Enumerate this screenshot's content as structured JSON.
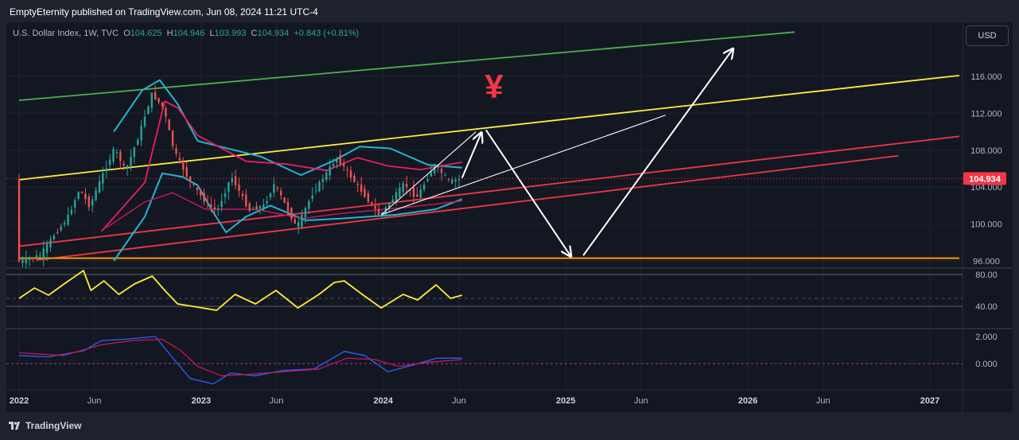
{
  "header": {
    "publisher_line": "EmptyEternity published on TradingView.com, Jun 08, 2024 11:21 UTC-4"
  },
  "legend": {
    "symbol": "U.S. Dollar Index, 1W, TVC",
    "o_label": "O",
    "o_value": "104.625",
    "h_label": "H",
    "h_value": "104.946",
    "l_label": "L",
    "l_value": "103.993",
    "c_label": "C",
    "c_value": "104.934",
    "change": "+0.843 (+0.81%)"
  },
  "currency_button": "USD",
  "annotation_symbol": "¥",
  "footer": {
    "brand": "TradingView"
  },
  "colors": {
    "background": "#131722",
    "up_candle": "#26a69a",
    "down_candle": "#ef5350",
    "yellow_line": "#ffeb3b",
    "red_line": "#f23645",
    "green_line": "#4caf50",
    "orange_line": "#ff9800",
    "bb_cyan": "#22b5d1",
    "bb_pink": "#e91e63",
    "macd_blue": "#2962ff",
    "macd_red": "#c2185b",
    "price_tag": "#f23645"
  },
  "chart_data": [
    {
      "type": "candlestick",
      "title": "U.S. Dollar Index, 1W, TVC",
      "x_tick_labels": [
        "2022",
        "Jun",
        "2023",
        "Jun",
        "2024",
        "Jun",
        "2025",
        "Jun",
        "2026",
        "Jun",
        "2027"
      ],
      "x_tick_dates": [
        "2022-01-01",
        "2022-06-01",
        "2023-01-01",
        "2023-06-01",
        "2024-01-01",
        "2024-06-01",
        "2025-01-01",
        "2025-06-01",
        "2026-01-01",
        "2026-06-01",
        "2027-01-01"
      ],
      "y_tick_labels": [
        "96.000",
        "100.000",
        "104.000",
        "108.000",
        "112.000",
        "116.000"
      ],
      "y_ticks": [
        96,
        100,
        104,
        108,
        112,
        116
      ],
      "ylim": [
        95.8,
        120.8
      ],
      "last_price": 104.934,
      "last_price_label": "104.934",
      "price_path": [
        [
          "2022-01-01",
          95.9
        ],
        [
          "2022-02-15",
          96.6
        ],
        [
          "2022-03-15",
          98.8
        ],
        [
          "2022-04-10",
          100.6
        ],
        [
          "2022-05-05",
          103.8
        ],
        [
          "2022-05-25",
          101.9
        ],
        [
          "2022-06-15",
          104.7
        ],
        [
          "2022-07-14",
          108.2
        ],
        [
          "2022-08-05",
          105.8
        ],
        [
          "2022-08-28",
          109.0
        ],
        [
          "2022-09-27",
          114.1
        ],
        [
          "2022-10-20",
          112.6
        ],
        [
          "2022-11-10",
          108.0
        ],
        [
          "2022-12-10",
          104.8
        ],
        [
          "2023-01-15",
          102.2
        ],
        [
          "2023-02-05",
          101.4
        ],
        [
          "2023-03-05",
          105.2
        ],
        [
          "2023-04-10",
          101.5
        ],
        [
          "2023-05-10",
          102.0
        ],
        [
          "2023-05-31",
          104.4
        ],
        [
          "2023-07-14",
          99.6
        ],
        [
          "2023-08-15",
          103.3
        ],
        [
          "2023-10-03",
          107.2
        ],
        [
          "2023-11-15",
          104.0
        ],
        [
          "2023-12-28",
          100.9
        ],
        [
          "2024-02-15",
          104.4
        ],
        [
          "2024-03-10",
          102.8
        ],
        [
          "2024-04-16",
          106.4
        ],
        [
          "2024-05-15",
          104.6
        ],
        [
          "2024-06-07",
          104.93
        ]
      ],
      "bb_upper": [
        [
          "2022-07-10",
          110.0
        ],
        [
          "2022-09-05",
          114.5
        ],
        [
          "2022-10-10",
          115.6
        ],
        [
          "2022-11-15",
          113.0
        ],
        [
          "2022-12-25",
          109.0
        ],
        [
          "2023-02-15",
          108.3
        ],
        [
          "2023-05-01",
          107.3
        ],
        [
          "2023-07-20",
          105.3
        ],
        [
          "2023-09-25",
          106.9
        ],
        [
          "2023-11-15",
          108.4
        ],
        [
          "2024-01-15",
          108.2
        ],
        [
          "2024-04-01",
          106.4
        ],
        [
          "2024-06-07",
          106.1
        ]
      ],
      "bb_lower": [
        [
          "2022-07-10",
          96.0
        ],
        [
          "2022-09-10",
          100.8
        ],
        [
          "2022-10-15",
          105.5
        ],
        [
          "2022-11-25",
          105.1
        ],
        [
          "2022-12-25",
          104.2
        ],
        [
          "2023-01-25",
          101.3
        ],
        [
          "2023-02-20",
          99.1
        ],
        [
          "2023-04-01",
          100.8
        ],
        [
          "2023-05-20",
          102.0
        ],
        [
          "2023-07-30",
          100.4
        ],
        [
          "2023-10-10",
          100.6
        ],
        [
          "2024-01-25",
          101.0
        ],
        [
          "2024-04-15",
          101.6
        ],
        [
          "2024-06-07",
          102.7
        ]
      ],
      "ma_pink": [
        [
          "2022-06-15",
          99.2
        ],
        [
          "2022-09-10",
          104.5
        ],
        [
          "2022-10-20",
          113.3
        ],
        [
          "2022-11-15",
          112.6
        ],
        [
          "2022-12-25",
          109.6
        ],
        [
          "2023-04-01",
          106.8
        ],
        [
          "2023-06-20",
          106.5
        ],
        [
          "2023-09-10",
          105.8
        ],
        [
          "2023-11-10",
          107.2
        ],
        [
          "2024-01-10",
          106.3
        ],
        [
          "2024-03-15",
          105.9
        ],
        [
          "2024-06-07",
          106.7
        ]
      ],
      "ma_red": [
        [
          "2022-06-25",
          99.6
        ],
        [
          "2022-09-10",
          102.4
        ],
        [
          "2022-11-05",
          103.4
        ],
        [
          "2023-01-10",
          101.6
        ],
        [
          "2023-04-20",
          101.6
        ],
        [
          "2023-07-25",
          100.6
        ],
        [
          "2023-10-01",
          101.1
        ],
        [
          "2023-12-15",
          101.5
        ],
        [
          "2024-03-01",
          101.9
        ],
        [
          "2024-06-07",
          102.5
        ]
      ],
      "trendlines": [
        {
          "id": "green-channel-top",
          "from": [
            "2022-01-01",
            113.4
          ],
          "to": [
            "2026-04-05",
            120.8
          ],
          "color": "green_line"
        },
        {
          "id": "yellow-resistance",
          "from": [
            "2022-01-01",
            104.8
          ],
          "to": [
            "2027-03-01",
            116.1
          ],
          "color": "yellow_line"
        },
        {
          "id": "red-upper",
          "from": [
            "2022-01-01",
            97.6
          ],
          "to": [
            "2027-03-01",
            109.5
          ],
          "color": "red_line"
        },
        {
          "id": "red-lower",
          "from": [
            "2022-02-05",
            96.1
          ],
          "to": [
            "2026-10-30",
            107.4
          ],
          "color": "red_line"
        },
        {
          "id": "orange-support",
          "from": [
            "2022-01-01",
            96.3
          ],
          "to": [
            "2027-03-01",
            96.3
          ],
          "color": "orange_line"
        }
      ],
      "projection_arrows": [
        {
          "from": [
            "2024-06-07",
            105.0
          ],
          "to": [
            "2024-07-15",
            109.8
          ]
        },
        {
          "from": [
            "2024-07-25",
            110.2
          ],
          "to": [
            "2025-01-10",
            96.6
          ]
        },
        {
          "from": [
            "2025-02-05",
            96.6
          ],
          "to": [
            "2025-12-01",
            118.9
          ]
        }
      ],
      "projection_lines": [
        {
          "from": [
            "2023-12-28",
            101.0
          ],
          "to": [
            "2024-07-05",
            110.0
          ]
        },
        {
          "from": [
            "2023-12-28",
            101.0
          ],
          "to": [
            "2025-07-20",
            111.8
          ]
        }
      ]
    },
    {
      "type": "line",
      "title": "",
      "y_tick_labels": [
        "80.00",
        "40.00"
      ],
      "y_ticks": [
        80,
        40
      ],
      "ylim": [
        27,
        90
      ],
      "levels": [
        80,
        50,
        40
      ],
      "series": [
        {
          "color": "yellow_line",
          "points": [
            [
              "2022-01-01",
              50
            ],
            [
              "2022-02-01",
              63
            ],
            [
              "2022-03-01",
              54
            ],
            [
              "2022-04-01",
              68
            ],
            [
              "2022-05-10",
              85
            ],
            [
              "2022-05-25",
              60
            ],
            [
              "2022-06-20",
              72
            ],
            [
              "2022-07-20",
              55
            ],
            [
              "2022-08-20",
              68
            ],
            [
              "2022-09-25",
              78
            ],
            [
              "2022-10-20",
              60
            ],
            [
              "2022-11-15",
              43
            ],
            [
              "2022-12-15",
              40
            ],
            [
              "2023-02-01",
              35
            ],
            [
              "2023-03-10",
              55
            ],
            [
              "2023-04-20",
              43
            ],
            [
              "2023-05-31",
              60
            ],
            [
              "2023-07-14",
              38
            ],
            [
              "2023-08-25",
              55
            ],
            [
              "2023-09-25",
              70
            ],
            [
              "2023-10-15",
              72
            ],
            [
              "2023-11-20",
              55
            ],
            [
              "2023-12-28",
              38
            ],
            [
              "2024-02-10",
              55
            ],
            [
              "2024-03-10",
              48
            ],
            [
              "2024-04-16",
              67
            ],
            [
              "2024-05-15",
              50
            ],
            [
              "2024-06-07",
              54
            ]
          ]
        }
      ]
    },
    {
      "type": "line",
      "title": "",
      "y_tick_labels": [
        "2.000",
        "0.000"
      ],
      "y_ticks": [
        2,
        0
      ],
      "ylim": [
        -1.7,
        2.4
      ],
      "levels": [
        0
      ],
      "series": [
        {
          "color": "macd_blue",
          "points": [
            [
              "2022-01-01",
              0.6
            ],
            [
              "2022-03-01",
              0.5
            ],
            [
              "2022-05-10",
              0.95
            ],
            [
              "2022-06-15",
              1.7
            ],
            [
              "2022-08-01",
              1.8
            ],
            [
              "2022-10-01",
              2.0
            ],
            [
              "2022-11-10",
              0.2
            ],
            [
              "2022-12-10",
              -1.1
            ],
            [
              "2023-01-25",
              -1.5
            ],
            [
              "2023-03-01",
              -0.7
            ],
            [
              "2023-04-20",
              -0.9
            ],
            [
              "2023-06-15",
              -0.5
            ],
            [
              "2023-08-15",
              -0.4
            ],
            [
              "2023-10-15",
              0.9
            ],
            [
              "2023-11-25",
              0.6
            ],
            [
              "2024-01-10",
              -0.6
            ],
            [
              "2024-03-01",
              -0.1
            ],
            [
              "2024-04-16",
              0.4
            ],
            [
              "2024-06-07",
              0.4
            ]
          ]
        },
        {
          "color": "macd_red",
          "points": [
            [
              "2022-01-01",
              0.8
            ],
            [
              "2022-04-01",
              0.6
            ],
            [
              "2022-06-15",
              1.4
            ],
            [
              "2022-08-15",
              1.7
            ],
            [
              "2022-10-15",
              1.8
            ],
            [
              "2022-11-20",
              1.0
            ],
            [
              "2022-12-25",
              -0.2
            ],
            [
              "2023-02-10",
              -0.9
            ],
            [
              "2023-04-01",
              -0.8
            ],
            [
              "2023-06-15",
              -0.6
            ],
            [
              "2023-08-25",
              -0.4
            ],
            [
              "2023-10-20",
              0.4
            ],
            [
              "2023-12-15",
              0.3
            ],
            [
              "2024-02-01",
              -0.2
            ],
            [
              "2024-04-01",
              0.1
            ],
            [
              "2024-06-07",
              0.3
            ]
          ]
        }
      ]
    }
  ]
}
